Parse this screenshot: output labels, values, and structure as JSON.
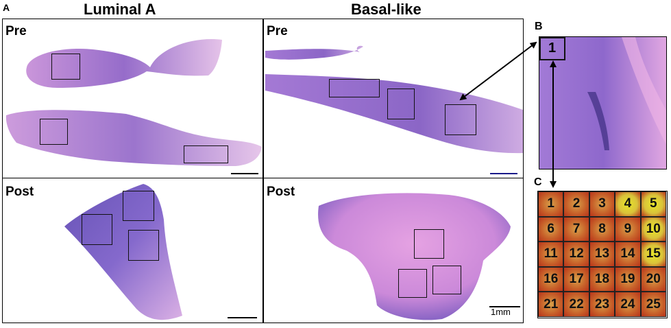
{
  "figure": {
    "label_a": "A",
    "label_b": "B",
    "label_c": "C",
    "col_luminal": "Luminal A",
    "col_basal": "Basal-like",
    "row_pre": "Pre",
    "row_post": "Post",
    "scale_bar_label": "1mm",
    "zoom_roi_number": "1",
    "grid_numbers": [
      "1",
      "2",
      "3",
      "4",
      "5",
      "6",
      "7",
      "8",
      "9",
      "10",
      "11",
      "12",
      "13",
      "14",
      "15",
      "16",
      "17",
      "18",
      "19",
      "20",
      "21",
      "22",
      "23",
      "24",
      "25"
    ]
  },
  "colors": {
    "stain_purple": "#7a4bb8",
    "stain_pink": "#d98fd2",
    "heat_red": "#b8331a",
    "heat_yellow": "#e8e62a"
  }
}
